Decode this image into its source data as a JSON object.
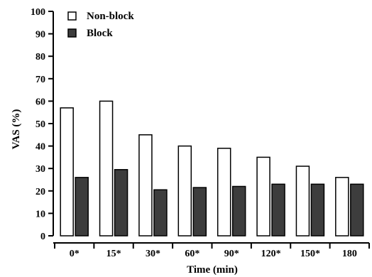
{
  "chart_data": {
    "type": "bar",
    "title": "",
    "xlabel": "Time (min)",
    "ylabel": "VAS (%)",
    "ylim": [
      0,
      100
    ],
    "yticks": [
      0,
      10,
      20,
      30,
      40,
      50,
      60,
      70,
      80,
      90,
      100
    ],
    "categories": [
      "0*",
      "15*",
      "30*",
      "60*",
      "90*",
      "120*",
      "150*",
      "180"
    ],
    "series": [
      {
        "name": "Non-block",
        "values": [
          57,
          60,
          45,
          40,
          39,
          35,
          31,
          26
        ],
        "color": "#ffffff"
      },
      {
        "name": "Block",
        "values": [
          26,
          29.5,
          20.5,
          21.5,
          22,
          23,
          23,
          23
        ],
        "color": "#3d3d3d"
      }
    ],
    "grid": false,
    "legend_position": "top-left"
  }
}
